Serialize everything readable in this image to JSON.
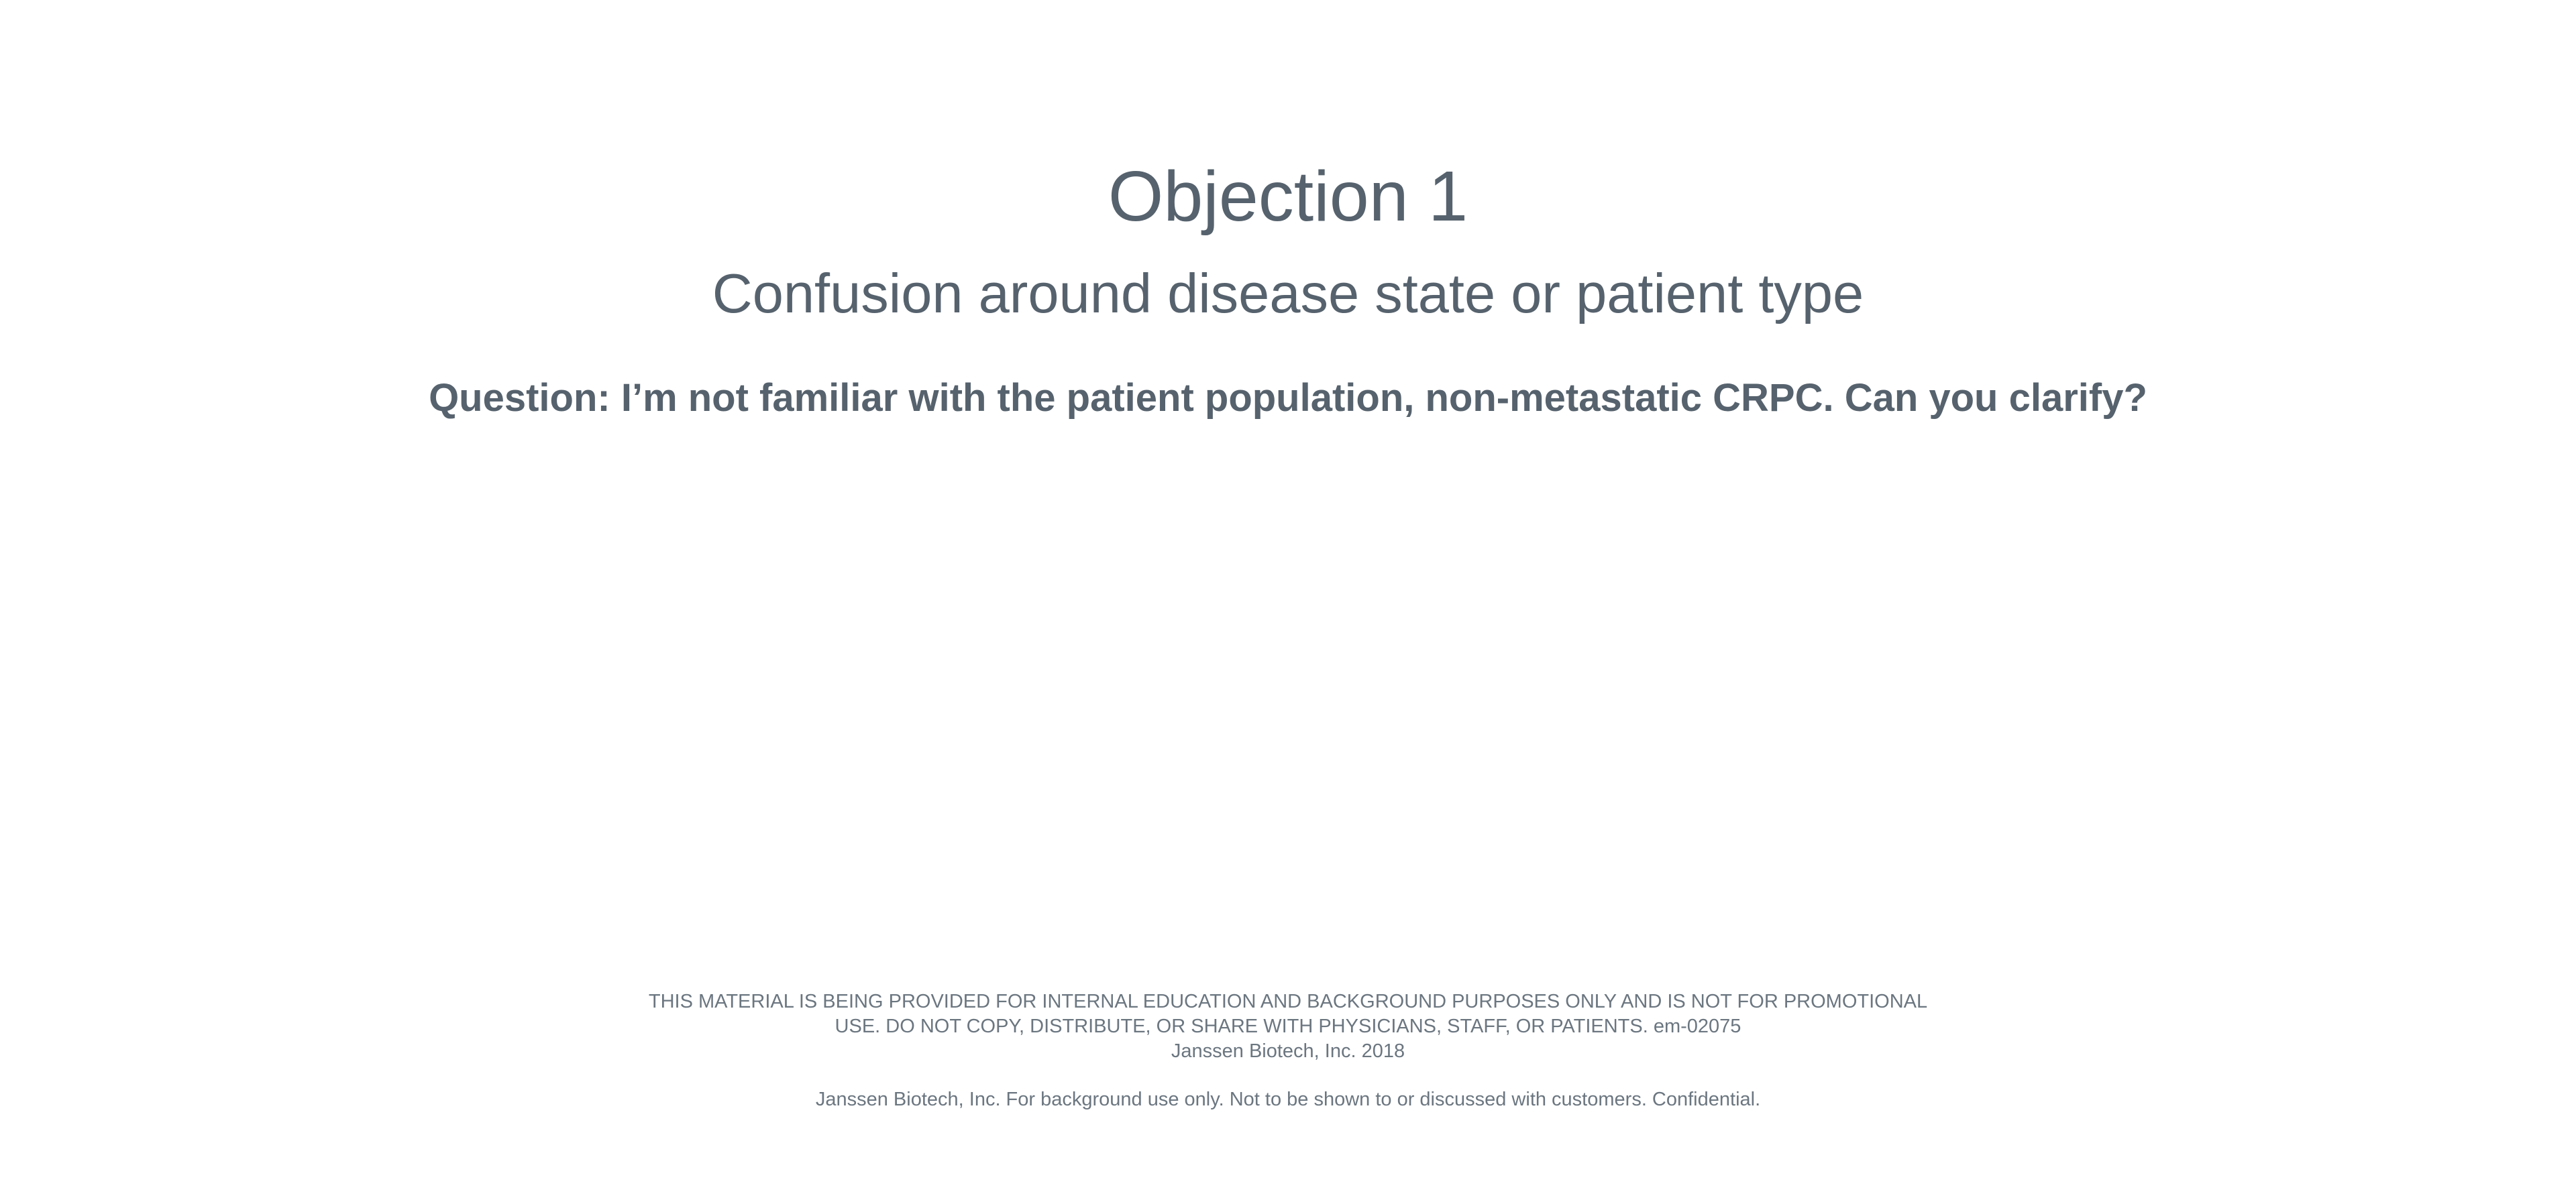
{
  "slide": {
    "title": "Objection 1",
    "subtitle": "Confusion around disease state or patient type",
    "question": "Question: I’m not familiar with the patient population, non-metastatic CRPC.  Can you clarify?"
  },
  "footer": {
    "disclaimer_line_1": "THIS MATERIAL IS BEING PROVIDED FOR INTERNAL EDUCATION AND BACKGROUND PURPOSES ONLY AND IS NOT FOR PROMOTIONAL",
    "disclaimer_line_2": "USE.  DO NOT COPY, DISTRIBUTE, OR SHARE WITH PHYSICIANS, STAFF, OR PATIENTS.  em-02075",
    "copyright": "Janssen Biotech, Inc. 2018",
    "confidential_notice": "Janssen Biotech, Inc. For background use only. Not to be shown to or discussed with customers. Confidential."
  }
}
